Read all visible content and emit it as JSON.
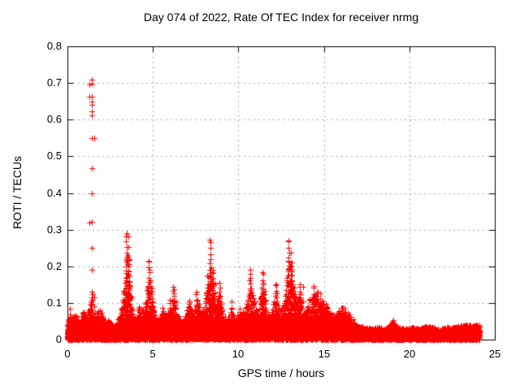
{
  "chart_data": {
    "type": "scatter",
    "title": "Day 074 of 2022, Rate Of TEC Index for receiver nrmg",
    "xlabel": "GPS time / hours",
    "ylabel": "ROTI / TECUs",
    "xlim": [
      0,
      25
    ],
    "ylim": [
      0,
      0.8
    ],
    "xtick_values": [
      0,
      5,
      10,
      15,
      20,
      25
    ],
    "xtick_labels": [
      "0",
      "5",
      "10",
      "15",
      "20",
      "25"
    ],
    "ytick_values": [
      0,
      0.1,
      0.2,
      0.3,
      0.4,
      0.5,
      0.6,
      0.7,
      0.8
    ],
    "ytick_labels": [
      "0",
      "0.1",
      "0.2",
      "0.3",
      "0.4",
      "0.5",
      "0.6",
      "0.7",
      "0.8"
    ],
    "grid": true,
    "legend": "none",
    "marker": "plus",
    "colors": {
      "marker": "#ff0000",
      "grid": "#a8a8a8",
      "axis": "#000000",
      "text": "#000000",
      "background": "#ffffff"
    },
    "series_name": "ROTI",
    "time_coverage_hours": [
      0,
      24.1
    ],
    "baseline_band_max_tecu": 0.045,
    "envelope_peaks": [
      [
        0.0,
        0.05
      ],
      [
        0.15,
        0.09
      ],
      [
        0.3,
        0.06
      ],
      [
        0.5,
        0.08
      ],
      [
        0.7,
        0.05
      ],
      [
        0.95,
        0.095
      ],
      [
        1.15,
        0.06
      ],
      [
        1.43,
        0.13
      ],
      [
        1.6,
        0.08
      ],
      [
        1.95,
        0.09
      ],
      [
        2.2,
        0.05
      ],
      [
        2.5,
        0.065
      ],
      [
        2.8,
        0.045
      ],
      [
        3.05,
        0.07
      ],
      [
        3.25,
        0.11
      ],
      [
        3.45,
        0.29
      ],
      [
        3.6,
        0.22
      ],
      [
        3.8,
        0.08
      ],
      [
        4.0,
        0.06
      ],
      [
        4.2,
        0.1
      ],
      [
        4.45,
        0.09
      ],
      [
        4.6,
        0.12
      ],
      [
        4.76,
        0.215
      ],
      [
        4.95,
        0.13
      ],
      [
        5.1,
        0.07
      ],
      [
        5.3,
        0.06
      ],
      [
        5.55,
        0.09
      ],
      [
        5.8,
        0.07
      ],
      [
        6.0,
        0.11
      ],
      [
        6.2,
        0.145
      ],
      [
        6.45,
        0.08
      ],
      [
        6.7,
        0.05
      ],
      [
        6.95,
        0.08
      ],
      [
        7.15,
        0.12
      ],
      [
        7.35,
        0.07
      ],
      [
        7.55,
        0.13
      ],
      [
        7.8,
        0.09
      ],
      [
        8.05,
        0.11
      ],
      [
        8.33,
        0.273
      ],
      [
        8.5,
        0.19
      ],
      [
        8.7,
        0.1
      ],
      [
        8.9,
        0.155
      ],
      [
        9.1,
        0.07
      ],
      [
        9.35,
        0.06
      ],
      [
        9.6,
        0.105
      ],
      [
        9.85,
        0.055
      ],
      [
        10.1,
        0.09
      ],
      [
        10.35,
        0.08
      ],
      [
        10.7,
        0.19
      ],
      [
        10.9,
        0.12
      ],
      [
        11.15,
        0.08
      ],
      [
        11.43,
        0.185
      ],
      [
        11.65,
        0.08
      ],
      [
        11.9,
        0.07
      ],
      [
        12.2,
        0.15
      ],
      [
        12.45,
        0.08
      ],
      [
        12.7,
        0.12
      ],
      [
        12.95,
        0.27
      ],
      [
        13.1,
        0.21
      ],
      [
        13.35,
        0.12
      ],
      [
        13.6,
        0.15
      ],
      [
        13.85,
        0.09
      ],
      [
        14.1,
        0.11
      ],
      [
        14.4,
        0.147
      ],
      [
        14.65,
        0.13
      ],
      [
        14.9,
        0.11
      ],
      [
        15.1,
        0.1
      ],
      [
        15.35,
        0.09
      ],
      [
        15.6,
        0.07
      ],
      [
        15.85,
        0.08
      ],
      [
        16.1,
        0.1
      ],
      [
        16.4,
        0.08
      ],
      [
        16.7,
        0.06
      ],
      [
        17.0,
        0.05
      ],
      [
        17.4,
        0.045
      ],
      [
        17.8,
        0.04
      ],
      [
        18.2,
        0.045
      ],
      [
        18.6,
        0.04
      ],
      [
        19.0,
        0.06
      ],
      [
        19.4,
        0.045
      ],
      [
        19.8,
        0.04
      ],
      [
        20.2,
        0.045
      ],
      [
        20.6,
        0.04
      ],
      [
        21.0,
        0.05
      ],
      [
        21.4,
        0.045
      ],
      [
        21.8,
        0.04
      ],
      [
        22.2,
        0.045
      ],
      [
        22.6,
        0.045
      ],
      [
        23.0,
        0.05
      ],
      [
        23.4,
        0.055
      ],
      [
        23.7,
        0.05
      ],
      [
        24.0,
        0.055
      ]
    ],
    "outlier_spike": {
      "t_hours": 1.43,
      "values": [
        0.71,
        0.698,
        0.663,
        0.65,
        0.64,
        0.622,
        0.612,
        0.549,
        0.468,
        0.4,
        0.321,
        0.251,
        0.191
      ]
    }
  }
}
